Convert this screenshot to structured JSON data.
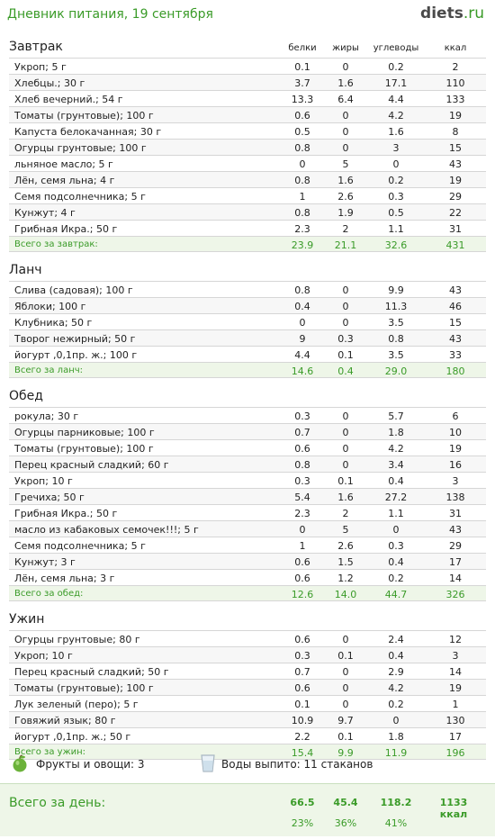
{
  "header": {
    "title": "Дневник питания, 19 сентября",
    "logo_main": "diets",
    "logo_tld": ".ru"
  },
  "columns": [
    "белки",
    "жиры",
    "углеводы",
    "ккал"
  ],
  "meals": [
    {
      "name": "Завтрак",
      "items": [
        [
          "Укроп; 5 г",
          "0.1",
          "0",
          "0.2",
          "2"
        ],
        [
          "Хлебцы.; 30 г",
          "3.7",
          "1.6",
          "17.1",
          "110"
        ],
        [
          "Хлеб вечерний.; 54 г",
          "13.3",
          "6.4",
          "4.4",
          "133"
        ],
        [
          "Томаты (грунтовые); 100 г",
          "0.6",
          "0",
          "4.2",
          "19"
        ],
        [
          "Капуста белокачанная; 30 г",
          "0.5",
          "0",
          "1.6",
          "8"
        ],
        [
          "Огурцы грунтовые; 100 г",
          "0.8",
          "0",
          "3",
          "15"
        ],
        [
          "льняное масло; 5 г",
          "0",
          "5",
          "0",
          "43"
        ],
        [
          "Лён, семя льна; 4 г",
          "0.8",
          "1.6",
          "0.2",
          "19"
        ],
        [
          "Семя подсолнечника; 5 г",
          "1",
          "2.6",
          "0.3",
          "29"
        ],
        [
          "Кунжут; 4 г",
          "0.8",
          "1.9",
          "0.5",
          "22"
        ],
        [
          "Грибная Икра.; 50 г",
          "2.3",
          "2",
          "1.1",
          "31"
        ]
      ],
      "total": [
        "Всего за завтрак:",
        "23.9",
        "21.1",
        "32.6",
        "431"
      ]
    },
    {
      "name": "Ланч",
      "items": [
        [
          "Слива (садовая); 100 г",
          "0.8",
          "0",
          "9.9",
          "43"
        ],
        [
          "Яблоки; 100 г",
          "0.4",
          "0",
          "11.3",
          "46"
        ],
        [
          "Клубника; 50 г",
          "0",
          "0",
          "3.5",
          "15"
        ],
        [
          "Творог нежирный; 50 г",
          "9",
          "0.3",
          "0.8",
          "43"
        ],
        [
          "йогурт ,0,1пр. ж.; 100 г",
          "4.4",
          "0.1",
          "3.5",
          "33"
        ]
      ],
      "total": [
        "Всего за ланч:",
        "14.6",
        "0.4",
        "29.0",
        "180"
      ]
    },
    {
      "name": "Обед",
      "items": [
        [
          "рокула; 30 г",
          "0.3",
          "0",
          "5.7",
          "6"
        ],
        [
          "Огурцы парниковые; 100 г",
          "0.7",
          "0",
          "1.8",
          "10"
        ],
        [
          "Томаты (грунтовые); 100 г",
          "0.6",
          "0",
          "4.2",
          "19"
        ],
        [
          "Перец красный сладкий; 60 г",
          "0.8",
          "0",
          "3.4",
          "16"
        ],
        [
          "Укроп; 10 г",
          "0.3",
          "0.1",
          "0.4",
          "3"
        ],
        [
          "Гречиха; 50 г",
          "5.4",
          "1.6",
          "27.2",
          "138"
        ],
        [
          "Грибная Икра.; 50 г",
          "2.3",
          "2",
          "1.1",
          "31"
        ],
        [
          "масло из кабаковых семочек!!!; 5 г",
          "0",
          "5",
          "0",
          "43"
        ],
        [
          "Семя подсолнечника; 5 г",
          "1",
          "2.6",
          "0.3",
          "29"
        ],
        [
          "Кунжут; 3 г",
          "0.6",
          "1.5",
          "0.4",
          "17"
        ],
        [
          "Лён, семя льна; 3 г",
          "0.6",
          "1.2",
          "0.2",
          "14"
        ]
      ],
      "total": [
        "Всего за обед:",
        "12.6",
        "14.0",
        "44.7",
        "326"
      ]
    },
    {
      "name": "Ужин",
      "items": [
        [
          "Огурцы грунтовые; 80 г",
          "0.6",
          "0",
          "2.4",
          "12"
        ],
        [
          "Укроп; 10 г",
          "0.3",
          "0.1",
          "0.4",
          "3"
        ],
        [
          "Перец красный сладкий; 50 г",
          "0.7",
          "0",
          "2.9",
          "14"
        ],
        [
          "Томаты (грунтовые); 100 г",
          "0.6",
          "0",
          "4.2",
          "19"
        ],
        [
          "Лук зеленый (перо); 5 г",
          "0.1",
          "0",
          "0.2",
          "1"
        ],
        [
          "Говяжий язык; 80 г",
          "10.9",
          "9.7",
          "0",
          "130"
        ],
        [
          "йогурт ,0,1пр. ж.; 50 г",
          "2.2",
          "0.1",
          "1.8",
          "17"
        ]
      ],
      "total": [
        "Всего за ужин:",
        "15.4",
        "9.9",
        "11.9",
        "196"
      ]
    }
  ],
  "extras": {
    "fruits": "Фрукты и овощи: 3",
    "water": "Воды выпито: 11 стаканов"
  },
  "day_total": {
    "label": "Всего за день:",
    "values": [
      "66.5",
      "45.4",
      "118.2",
      "1133 ккал"
    ],
    "percents": [
      "23%",
      "36%",
      "41%"
    ]
  },
  "colors": {
    "accent": "#3a9b28",
    "total_bg": "#eef6e8",
    "stripe": "#f7f7f7"
  },
  "icons": {
    "fruits": "apple-icon",
    "water": "glass-icon"
  }
}
